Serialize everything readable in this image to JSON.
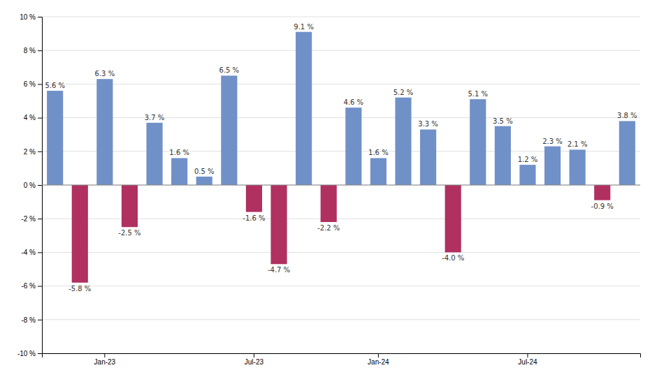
{
  "chart_data": {
    "type": "bar",
    "categories": [
      null,
      null,
      "Jan-23",
      null,
      null,
      null,
      null,
      null,
      "Jul-23",
      null,
      null,
      null,
      null,
      "Jan-24",
      null,
      null,
      null,
      null,
      null,
      "Jul-24",
      null,
      null,
      null,
      null
    ],
    "values": [
      5.6,
      -5.8,
      6.3,
      -2.5,
      3.7,
      1.6,
      0.5,
      6.5,
      -1.6,
      -4.7,
      9.1,
      -2.2,
      4.6,
      1.6,
      5.2,
      3.3,
      -4.0,
      5.1,
      3.5,
      1.2,
      2.3,
      2.1,
      -0.9,
      3.8
    ],
    "value_labels": [
      "5.6 %",
      "-5.8 %",
      "6.3 %",
      "-2.5 %",
      "3.7 %",
      "1.6 %",
      "0.5 %",
      "6.5 %",
      "-1.6 %",
      "-4.7 %",
      "9.1 %",
      "-2.2 %",
      "4.6 %",
      "1.6 %",
      "5.2 %",
      "3.3 %",
      "-4.0 %",
      "5.1 %",
      "3.5 %",
      "1.2 %",
      "2.3 %",
      "2.1 %",
      "-0.9 %",
      "3.8 %"
    ],
    "colors": [
      "#7090c8",
      "#b03060",
      "#7090c8",
      "#b03060",
      "#7090c8",
      "#7090c8",
      "#7090c8",
      "#7090c8",
      "#b03060",
      "#b03060",
      "#7090c8",
      "#b03060",
      "#7090c8",
      "#7090c8",
      "#7090c8",
      "#7090c8",
      "#b03060",
      "#7090c8",
      "#7090c8",
      "#7090c8",
      "#7090c8",
      "#7090c8",
      "#b03060",
      "#7090c8"
    ],
    "data_labels": true,
    "ylim": [
      -10,
      10
    ],
    "yticks": [
      {
        "value": -10,
        "label": "-10 %"
      },
      {
        "value": -8,
        "label": "-8 %"
      },
      {
        "value": -6,
        "label": "-6 %"
      },
      {
        "value": -4,
        "label": "-4 %"
      },
      {
        "value": -2,
        "label": "-2 %"
      },
      {
        "value": 0,
        "label": "0 %"
      },
      {
        "value": 2,
        "label": "2 %"
      },
      {
        "value": 4,
        "label": "4 %"
      },
      {
        "value": 6,
        "label": "6 %"
      },
      {
        "value": 8,
        "label": "8 %"
      },
      {
        "value": 10,
        "label": "10 %"
      }
    ],
    "grid": true
  }
}
